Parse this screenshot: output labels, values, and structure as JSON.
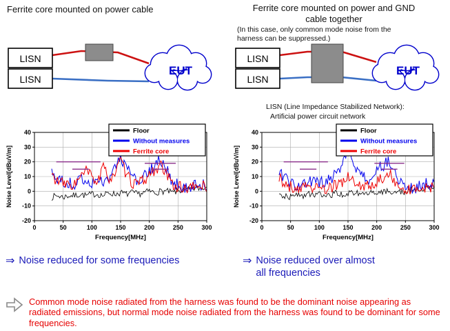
{
  "left_panel": {
    "title": "Ferrite core mounted on power cable",
    "diagram": {
      "lisn_top": "LISN",
      "lisn_bottom": "LISN",
      "eut": "EUT"
    },
    "conclusion": {
      "arrow": "⇒",
      "text": "Noise reduced for some frequencies"
    }
  },
  "right_panel": {
    "title": "Ferrite core mounted on power and GND cable together",
    "subtitle": "(In this case, only common mode noise from the harness can be suppressed.)",
    "diagram": {
      "lisn_top": "LISN",
      "lisn_bottom": "LISN",
      "eut": "EUT"
    },
    "lisn_note_line1": "LISN (Line Impedance Stabilized Network):",
    "lisn_note_line2": "Artificial power circuit network",
    "conclusion": {
      "arrow": "⇒",
      "text": "Noise reduced over almost all frequencies"
    }
  },
  "footnote": {
    "text": "Common mode noise radiated from the harness was found to be the dominant noise appearing as radiated emissions, but normal mode noise radiated from the harness was found to be dominant for some frequencies."
  },
  "colors": {
    "cloud_blue": "#0000cc",
    "wire_red": "#cc1111",
    "wire_blue": "#3a6fc4",
    "ferrite_gray": "#8c8c8c",
    "conclusion_blue": "#1a1ab8",
    "footnote_red": "#e60000",
    "limit_purple": "#8a2d8a"
  },
  "chart_data": [
    {
      "type": "line",
      "title": "",
      "xlabel": "Frequency[MHz]",
      "ylabel": "Noise Level[dBuV/m]",
      "xlim": [
        0,
        300
      ],
      "ylim": [
        -20,
        40
      ],
      "xticks": [
        0,
        50,
        100,
        150,
        200,
        250,
        300
      ],
      "yticks": [
        -20,
        -10,
        0,
        10,
        20,
        30,
        40
      ],
      "grid": true,
      "legend_position": "top-right",
      "x": [
        30,
        40,
        50,
        60,
        70,
        80,
        90,
        100,
        110,
        120,
        130,
        140,
        150,
        160,
        170,
        180,
        190,
        200,
        210,
        220,
        230,
        240,
        250,
        260,
        270,
        280,
        290,
        300
      ],
      "series": [
        {
          "name": "Floor",
          "color": "#000000",
          "values": [
            -4,
            -3,
            -4,
            -3,
            -3,
            -2,
            -3,
            -2,
            -2,
            -3,
            -1,
            -2,
            -1,
            -2,
            -1,
            -2,
            -1,
            0,
            -1,
            0,
            0,
            -1,
            0,
            1,
            1,
            2,
            2,
            3
          ]
        },
        {
          "name": "Without measures",
          "color": "#0000ee",
          "values": [
            13,
            8,
            6,
            5,
            5,
            7,
            8,
            6,
            5,
            8,
            10,
            14,
            24,
            16,
            9,
            7,
            9,
            13,
            18,
            21,
            14,
            7,
            4,
            3,
            3,
            4,
            5,
            4
          ]
        },
        {
          "name": "Ferrite core",
          "color": "#ee0000",
          "values": [
            11,
            7,
            5,
            4,
            5,
            9,
            14,
            10,
            6,
            16,
            9,
            12,
            21,
            11,
            6,
            5,
            7,
            11,
            15,
            17,
            11,
            5,
            3,
            2,
            2,
            3,
            4,
            3
          ]
        }
      ],
      "limit_segments": [
        {
          "x1": 38,
          "x2": 115,
          "y": 20
        },
        {
          "x1": 66,
          "x2": 95,
          "y": 15
        },
        {
          "x1": 192,
          "x2": 246,
          "y": 19
        },
        {
          "x1": 203,
          "x2": 234,
          "y": 15
        }
      ]
    },
    {
      "type": "line",
      "title": "",
      "xlabel": "Frequency[MHz]",
      "ylabel": "Noise Level[dBuV/m]",
      "xlim": [
        0,
        300
      ],
      "ylim": [
        -20,
        40
      ],
      "xticks": [
        0,
        50,
        100,
        150,
        200,
        250,
        300
      ],
      "yticks": [
        -20,
        -10,
        0,
        10,
        20,
        30,
        40
      ],
      "grid": true,
      "legend_position": "top-right",
      "x": [
        30,
        40,
        50,
        60,
        70,
        80,
        90,
        100,
        110,
        120,
        130,
        140,
        150,
        160,
        170,
        180,
        190,
        200,
        210,
        220,
        230,
        240,
        250,
        260,
        270,
        280,
        290,
        300
      ],
      "series": [
        {
          "name": "Floor",
          "color": "#000000",
          "values": [
            -4,
            -3,
            -4,
            -3,
            -3,
            -2,
            -3,
            -2,
            -2,
            -3,
            -1,
            -2,
            -1,
            -2,
            -1,
            -2,
            -1,
            0,
            -1,
            0,
            0,
            -1,
            0,
            1,
            1,
            2,
            2,
            3
          ]
        },
        {
          "name": "Without measures",
          "color": "#0000ee",
          "values": [
            13,
            8,
            5,
            4,
            5,
            7,
            6,
            5,
            6,
            9,
            12,
            17,
            28,
            19,
            11,
            8,
            10,
            14,
            18,
            20,
            12,
            6,
            4,
            3,
            3,
            4,
            5,
            4
          ]
        },
        {
          "name": "Ferrite core",
          "color": "#ee0000",
          "values": [
            9,
            5,
            3,
            2,
            2,
            3,
            3,
            2,
            2,
            3,
            4,
            6,
            10,
            7,
            4,
            3,
            4,
            6,
            9,
            13,
            8,
            4,
            2,
            1,
            1,
            2,
            3,
            2
          ]
        }
      ],
      "limit_segments": [
        {
          "x1": 38,
          "x2": 115,
          "y": 20
        },
        {
          "x1": 66,
          "x2": 95,
          "y": 15
        },
        {
          "x1": 196,
          "x2": 248,
          "y": 19
        },
        {
          "x1": 208,
          "x2": 236,
          "y": 15
        }
      ]
    }
  ]
}
